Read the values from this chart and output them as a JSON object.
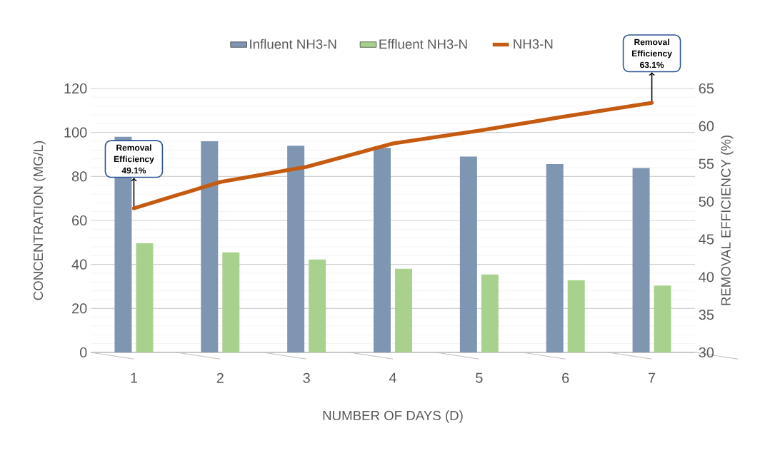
{
  "chart_data": {
    "type": "bar",
    "xlabel": "NUMBER OF DAYS (D)",
    "ylabel": "CONCENTRATION (MG/L)",
    "y2label": "REMOVAL EFFICIENCY (%)",
    "categories": [
      "1",
      "2",
      "3",
      "4",
      "5",
      "6",
      "7"
    ],
    "series": [
      {
        "name": "Influent NH3-N",
        "color": "#7f96b2",
        "values": [
          98,
          96,
          94,
          93,
          89,
          85.6,
          83.8
        ]
      },
      {
        "name": "Effluent NH3-N",
        "color": "#a9d18e",
        "values": [
          49.6,
          45.5,
          42.2,
          38,
          35.4,
          32.8,
          30.4
        ]
      },
      {
        "name": "NH3-N",
        "type": "line",
        "axis": "y2",
        "color": "#c55a11",
        "values": [
          49.1,
          52.6,
          54.6,
          57.7,
          59.4,
          61.3,
          63.1
        ]
      }
    ],
    "ylim": [
      0,
      120
    ],
    "yticks": [
      0,
      20,
      40,
      60,
      80,
      100,
      120
    ],
    "y2lim": [
      30,
      65
    ],
    "y2ticks": [
      30,
      35,
      40,
      45,
      50,
      55,
      60,
      65
    ],
    "grid": "y",
    "legend": "top",
    "marker": "none",
    "line_style": "solid",
    "annotations": [
      {
        "text": "Removal Efficiency 49.1%",
        "x": "1",
        "y": 65.5
      },
      {
        "text": "Removal Efficiency 63.1%",
        "x": "7",
        "y": 113.5
      }
    ]
  }
}
